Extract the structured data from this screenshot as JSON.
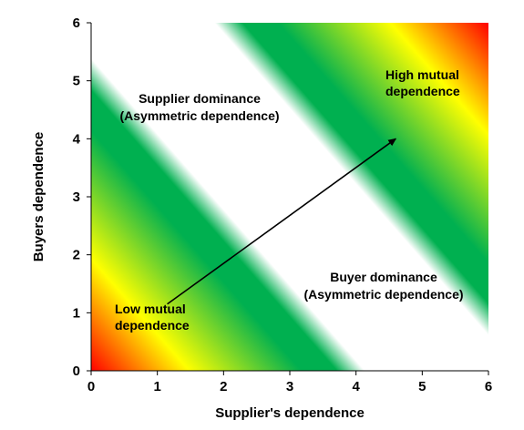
{
  "axes": {
    "x_title": "Supplier's dependence",
    "y_title": "Buyers dependence",
    "x_ticks": [
      "0",
      "1",
      "2",
      "3",
      "4",
      "5",
      "6"
    ],
    "y_ticks": [
      "0",
      "1",
      "2",
      "3",
      "4",
      "5",
      "6"
    ],
    "x_range": [
      0,
      6
    ],
    "y_range": [
      0,
      6
    ]
  },
  "regions": {
    "supplier_dominance": {
      "line1": "Supplier dominance",
      "line2": "(Asymmetric dependence)"
    },
    "buyer_dominance": {
      "line1": "Buyer dominance",
      "line2": "(Asymmetric dependence)"
    },
    "high_mutual": {
      "line1": "High mutual",
      "line2": "dependence"
    },
    "low_mutual": {
      "line1": "Low mutual",
      "line2": "dependence"
    }
  },
  "colors": {
    "mutual_band": "#ffffff",
    "near_band": "#00b050",
    "mid": "#ffff00",
    "far": "#ff0000",
    "arrow": "#000000"
  },
  "arrow": {
    "from": [
      1.15,
      1.15
    ],
    "to": [
      4.6,
      4.0
    ]
  }
}
